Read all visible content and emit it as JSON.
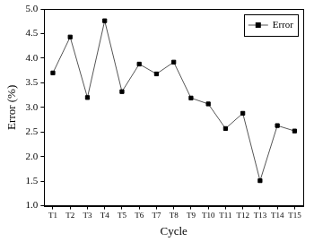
{
  "chart_data": {
    "type": "line",
    "x_label": "Cycle",
    "y_label": "Error (%)",
    "categories": [
      "T1",
      "T2",
      "T3",
      "T4",
      "T5",
      "T6",
      "T7",
      "T8",
      "T9",
      "T10",
      "T11",
      "T12",
      "T13",
      "T14",
      "T15"
    ],
    "series": [
      {
        "name": "Error",
        "color": "#000000",
        "marker": "square",
        "line_style": "solid",
        "values": [
          3.7,
          4.43,
          3.2,
          4.76,
          3.32,
          3.88,
          3.68,
          3.92,
          3.19,
          3.07,
          2.57,
          2.88,
          1.51,
          2.63,
          2.52
        ]
      }
    ],
    "ylim": [
      1,
      5
    ],
    "yticks": [
      {
        "value": 1,
        "label": "1.0"
      },
      {
        "value": 1.5,
        "label": "1.5"
      },
      {
        "value": 2,
        "label": "2.0"
      },
      {
        "value": 2.5,
        "label": "2.5"
      },
      {
        "value": 3,
        "label": "3.0"
      },
      {
        "value": 3.5,
        "label": "3.5"
      },
      {
        "value": 4,
        "label": "4.0"
      },
      {
        "value": 4.5,
        "label": "4.5"
      },
      {
        "value": 5,
        "label": "5.0"
      }
    ],
    "grid": false,
    "legend": "upper right"
  }
}
